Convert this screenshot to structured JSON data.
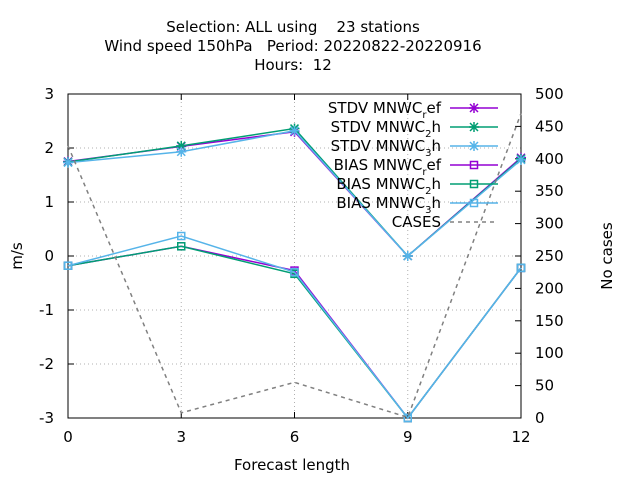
{
  "chart_data": {
    "type": "line",
    "title_lines": [
      "Selection: ALL using    23 stations",
      "Wind speed 150hPa   Period: 20220822-20220916",
      "Hours:  12"
    ],
    "xlabel": "Forecast length",
    "ylabel": "m/s",
    "y2label": "No cases",
    "x": [
      0,
      3,
      6,
      9,
      12
    ],
    "xlim": [
      0,
      12
    ],
    "ylim": [
      -3,
      3
    ],
    "y2lim": [
      0,
      500
    ],
    "xticks": [
      "0",
      "3",
      "6",
      "9",
      "12"
    ],
    "yticks": [
      "-3",
      "-2",
      "-1",
      "0",
      "1",
      "2",
      "3"
    ],
    "y2ticks": [
      "0",
      "50",
      "100",
      "150",
      "200",
      "250",
      "300",
      "350",
      "400",
      "450",
      "500"
    ],
    "grid": true,
    "legend_position": "top-right",
    "series": [
      {
        "name": "STDV MNWC_ref",
        "base": "STDV MNWC",
        "sub": "r",
        "rest": "ef",
        "color": "#9400d3",
        "marker": "x",
        "axis": "y",
        "values": [
          1.75,
          2.03,
          2.3,
          0.0,
          1.82
        ]
      },
      {
        "name": "STDV MNWC_2h",
        "base": "STDV MNWC",
        "sub": "2",
        "rest": "h",
        "color": "#009e73",
        "marker": "x",
        "axis": "y",
        "values": [
          1.74,
          2.04,
          2.36,
          0.0,
          1.8
        ]
      },
      {
        "name": "STDV MNWC_3h",
        "base": "STDV MNWC",
        "sub": "3",
        "rest": "h",
        "color": "#56b4e9",
        "marker": "x",
        "axis": "y",
        "values": [
          1.73,
          1.93,
          2.32,
          0.0,
          1.78
        ]
      },
      {
        "name": "BIAS MNWC_ref",
        "base": "BIAS MNWC",
        "sub": "r",
        "rest": "ef",
        "color": "#9400d3",
        "marker": "square",
        "axis": "y",
        "values": [
          -0.18,
          0.18,
          -0.27,
          -3.0,
          -0.22
        ]
      },
      {
        "name": "BIAS MNWC_2h",
        "base": "BIAS MNWC",
        "sub": "2",
        "rest": "h",
        "color": "#009e73",
        "marker": "square",
        "axis": "y",
        "values": [
          -0.18,
          0.18,
          -0.33,
          -3.0,
          -0.22
        ]
      },
      {
        "name": "BIAS MNWC_3h",
        "base": "BIAS MNWC",
        "sub": "3",
        "rest": "h",
        "color": "#56b4e9",
        "marker": "square",
        "axis": "y",
        "values": [
          -0.18,
          0.37,
          -0.3,
          -3.0,
          -0.22
        ]
      },
      {
        "name": "CASES",
        "base": "CASES",
        "sub": "",
        "rest": "",
        "color": "#808080",
        "marker": "none",
        "dashed": true,
        "axis": "y2",
        "values": [
          420,
          8,
          55,
          1,
          470
        ]
      }
    ]
  }
}
